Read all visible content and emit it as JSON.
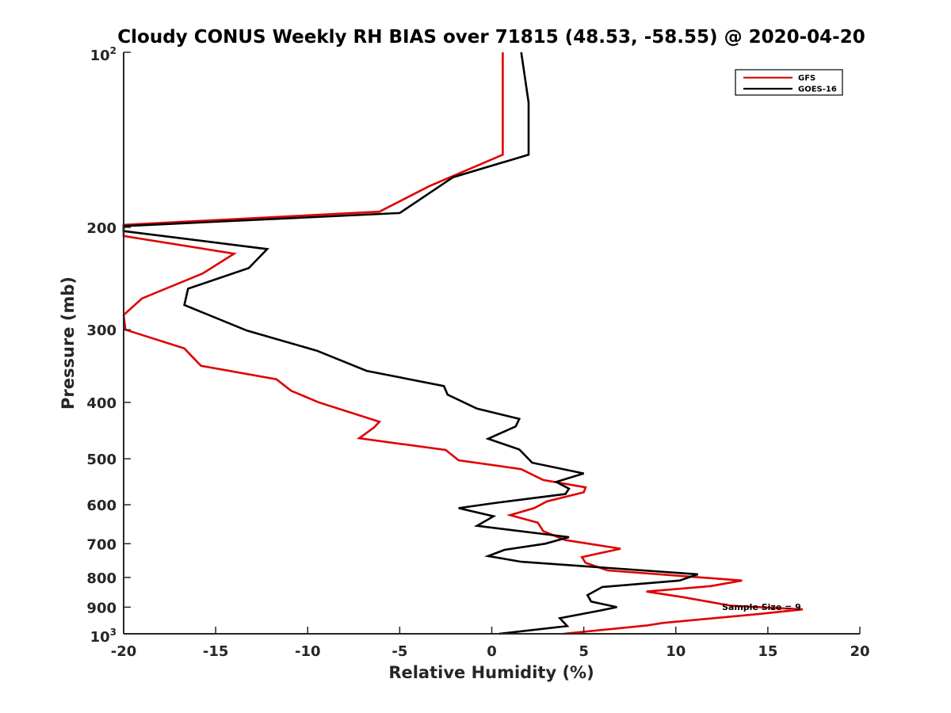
{
  "chart_data": {
    "type": "line",
    "title": "Cloudy CONUS Weekly RH BIAS over 71815 (48.53, -58.55) @ 2020-04-20",
    "xlabel": "Relative Humidity (%)",
    "ylabel": "Pressure (mb)",
    "xlim": [
      -20,
      20
    ],
    "ylim": [
      100,
      1000
    ],
    "yscale": "log",
    "y_reversed": true,
    "xticks": [
      "-20",
      "-15",
      "-10",
      "-5",
      "0",
      "5",
      "10",
      "15",
      "20"
    ],
    "yticks": [
      {
        "value": 100,
        "base": "10",
        "exp": "2"
      },
      {
        "value": 200,
        "label": "200"
      },
      {
        "value": 300,
        "label": "300"
      },
      {
        "value": 400,
        "label": "400"
      },
      {
        "value": 500,
        "label": "500"
      },
      {
        "value": 600,
        "label": "600"
      },
      {
        "value": 700,
        "label": "700"
      },
      {
        "value": 800,
        "label": "800"
      },
      {
        "value": 900,
        "label": "900"
      },
      {
        "value": 1000,
        "base": "10",
        "exp": "3"
      }
    ],
    "grid": false,
    "legend_position": "top-right",
    "annotation": "Sample Size = 9",
    "series": [
      {
        "name": "GFS",
        "color": "#e00000",
        "points": [
          [
            0.6,
            100
          ],
          [
            0.6,
            150
          ],
          [
            -3.4,
            170
          ],
          [
            -6.1,
            188
          ],
          [
            -20,
            198
          ],
          [
            -20,
            207
          ],
          [
            -14,
            222
          ],
          [
            -15.7,
            240
          ],
          [
            -19,
            265
          ],
          [
            -20,
            283
          ],
          [
            -19.9,
            300
          ],
          [
            -16.7,
            323
          ],
          [
            -15.8,
            346
          ],
          [
            -11.7,
            365
          ],
          [
            -10.9,
            382
          ],
          [
            -9.4,
            400
          ],
          [
            -6.1,
            432
          ],
          [
            -6.4,
            442
          ],
          [
            -7.2,
            461
          ],
          [
            -2.5,
            483
          ],
          [
            -1.8,
            503
          ],
          [
            1.6,
            521
          ],
          [
            2.8,
            544
          ],
          [
            5.1,
            560
          ],
          [
            5.0,
            571
          ],
          [
            3.0,
            592
          ],
          [
            2.3,
            608
          ],
          [
            1.0,
            625
          ],
          [
            2.5,
            644
          ],
          [
            2.8,
            666
          ],
          [
            4.0,
            690
          ],
          [
            7.0,
            714
          ],
          [
            4.9,
            738
          ],
          [
            5.1,
            755
          ],
          [
            6.3,
            778
          ],
          [
            13.6,
            810
          ],
          [
            11.9,
            828
          ],
          [
            8.4,
            846
          ],
          [
            10.4,
            865
          ],
          [
            13.0,
            895
          ],
          [
            16.9,
            908
          ],
          [
            14.5,
            925
          ],
          [
            9.3,
            958
          ],
          [
            8.4,
            968
          ],
          [
            3.9,
            1000
          ]
        ]
      },
      {
        "name": "GOES-16",
        "color": "#000000",
        "points": [
          [
            1.6,
            100
          ],
          [
            2.0,
            122
          ],
          [
            2.0,
            150
          ],
          [
            -2.1,
            164
          ],
          [
            -5.0,
            189
          ],
          [
            -20,
            199
          ],
          [
            -20,
            203
          ],
          [
            -12.2,
            218
          ],
          [
            -13.2,
            235
          ],
          [
            -16.5,
            255
          ],
          [
            -16.7,
            272
          ],
          [
            -13.3,
            301
          ],
          [
            -9.5,
            326
          ],
          [
            -6.8,
            353
          ],
          [
            -2.6,
            375
          ],
          [
            -2.4,
            388
          ],
          [
            -0.8,
            410
          ],
          [
            1.5,
            427
          ],
          [
            1.3,
            440
          ],
          [
            -0.2,
            462
          ],
          [
            1.5,
            482
          ],
          [
            2.2,
            508
          ],
          [
            5.0,
            530
          ],
          [
            3.5,
            548
          ],
          [
            4.2,
            563
          ],
          [
            4.0,
            575
          ],
          [
            0.3,
            595
          ],
          [
            -1.8,
            608
          ],
          [
            0.1,
            628
          ],
          [
            -0.8,
            652
          ],
          [
            4.2,
            682
          ],
          [
            2.9,
            700
          ],
          [
            0.7,
            717
          ],
          [
            -0.2,
            735
          ],
          [
            1.6,
            752
          ],
          [
            11.2,
            790
          ],
          [
            10.2,
            810
          ],
          [
            6.0,
            831
          ],
          [
            5.2,
            858
          ],
          [
            5.4,
            880
          ],
          [
            6.8,
            900
          ],
          [
            5.9,
            912
          ],
          [
            3.7,
            940
          ],
          [
            4.1,
            970
          ],
          [
            0.4,
            1000
          ]
        ]
      }
    ]
  }
}
